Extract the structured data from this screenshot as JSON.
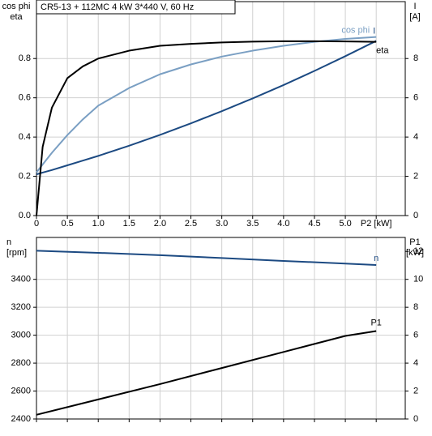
{
  "chart_data": [
    {
      "type": "line",
      "title": "CR5-13 + 112MC   4 kW   3*440 V, 60 Hz",
      "ylabel": [
        "cos phi",
        "eta"
      ],
      "y2label": [
        "I",
        "[A]"
      ],
      "x": [
        0,
        0.1,
        0.25,
        0.5,
        0.75,
        1,
        1.5,
        2,
        2.5,
        3,
        3.5,
        4,
        4.5,
        5,
        5.5
      ],
      "xlim": [
        0,
        5.97
      ],
      "xticks": [
        0,
        0.5,
        {
          "value": 1,
          "label": "1.0"
        },
        1.5,
        {
          "value": 2,
          "label": "2.0"
        },
        2.5,
        {
          "value": 3,
          "label": "3.0"
        },
        3.5,
        {
          "value": 4,
          "label": "4.0"
        },
        4.5,
        {
          "value": 5,
          "label": "5.0"
        },
        {
          "value": 5.5,
          "label": "P2 [kW]"
        }
      ],
      "ylim": [
        0,
        1.09
      ],
      "yticks": [
        {
          "value": 0,
          "label": "0.0"
        },
        0.2,
        0.4,
        0.6,
        0.8
      ],
      "y2lim": [
        0,
        10.9
      ],
      "y2ticks": [
        0,
        2,
        4,
        6,
        8
      ],
      "grid": true,
      "series": [
        {
          "name": "cos phi",
          "color": "#7a9fc3",
          "axis": "y",
          "values": [
            0.22,
            0.26,
            0.32,
            0.41,
            0.49,
            0.56,
            0.65,
            0.72,
            0.77,
            0.81,
            0.84,
            0.865,
            0.885,
            0.9,
            0.91
          ]
        },
        {
          "name": "I",
          "color": "#1c4a82",
          "axis": "y2",
          "values": [
            2.1,
            2.19,
            2.32,
            2.56,
            2.8,
            3.04,
            3.56,
            4.11,
            4.7,
            5.32,
            5.97,
            6.65,
            7.37,
            8.12,
            8.9
          ]
        },
        {
          "name": "eta",
          "color": "#000000",
          "axis": "y",
          "values": [
            0,
            0.35,
            0.55,
            0.7,
            0.76,
            0.8,
            0.84,
            0.865,
            0.875,
            0.882,
            0.886,
            0.888,
            0.888,
            0.887,
            0.885
          ]
        }
      ]
    },
    {
      "type": "line",
      "ylabel": [
        "n",
        "[rpm]"
      ],
      "y2label": [
        "P1",
        "[kW]"
      ],
      "x": [
        0,
        1,
        2,
        3,
        4,
        5,
        5.5
      ],
      "xlim": [
        0,
        5.97
      ],
      "xticks": [
        0,
        0.5,
        1,
        1.5,
        2,
        2.5,
        3,
        3.5,
        4,
        4.5,
        5,
        5.5
      ],
      "ylim": [
        2400,
        3700
      ],
      "yticks": [
        2400,
        2600,
        2800,
        3000,
        3200,
        3400
      ],
      "y2lim": [
        0,
        13
      ],
      "y2ticks": [
        0,
        2,
        4,
        6,
        8,
        10,
        12
      ],
      "grid": true,
      "series": [
        {
          "name": "n",
          "color": "#1c4a82",
          "axis": "y",
          "values": [
            3605,
            3590,
            3573,
            3553,
            3532,
            3513,
            3503
          ]
        },
        {
          "name": "P1",
          "color": "#000000",
          "axis": "y2",
          "values": [
            0.3,
            1.4,
            2.5,
            3.65,
            4.8,
            5.95,
            6.3
          ]
        }
      ]
    }
  ]
}
